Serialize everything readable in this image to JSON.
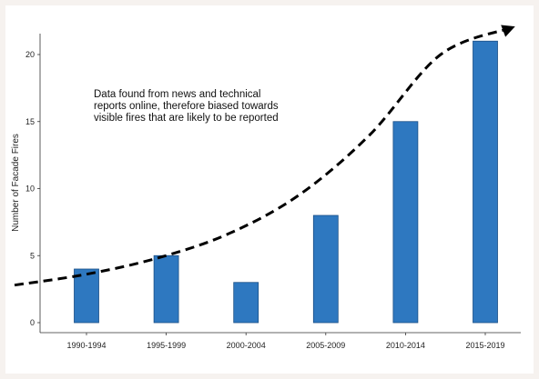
{
  "chart_data": {
    "type": "bar",
    "title": "",
    "xlabel": "",
    "ylabel": "Number of Facade Fires",
    "categories": [
      "1990-1994",
      "1995-1999",
      "2000-2004",
      "2005-2009",
      "2010-2014",
      "2015-2019"
    ],
    "values": [
      4,
      5,
      3,
      8,
      15,
      21
    ],
    "ylim": [
      0,
      22
    ],
    "yticks": [
      0,
      5,
      10,
      15,
      20
    ],
    "grid": false,
    "bar_color": "#2e78c0",
    "bar_edge_color": "#1b4f86",
    "trend": {
      "style": "dashed",
      "color": "#000000",
      "arrow": true,
      "values": [
        2.8,
        3.6,
        4.8,
        6.6,
        9.5,
        14.0,
        20.0,
        22.0
      ]
    },
    "annotation": [
      "Data found from news and technical",
      "reports online, therefore biased towards",
      "visible fires that are likely to be reported"
    ]
  }
}
